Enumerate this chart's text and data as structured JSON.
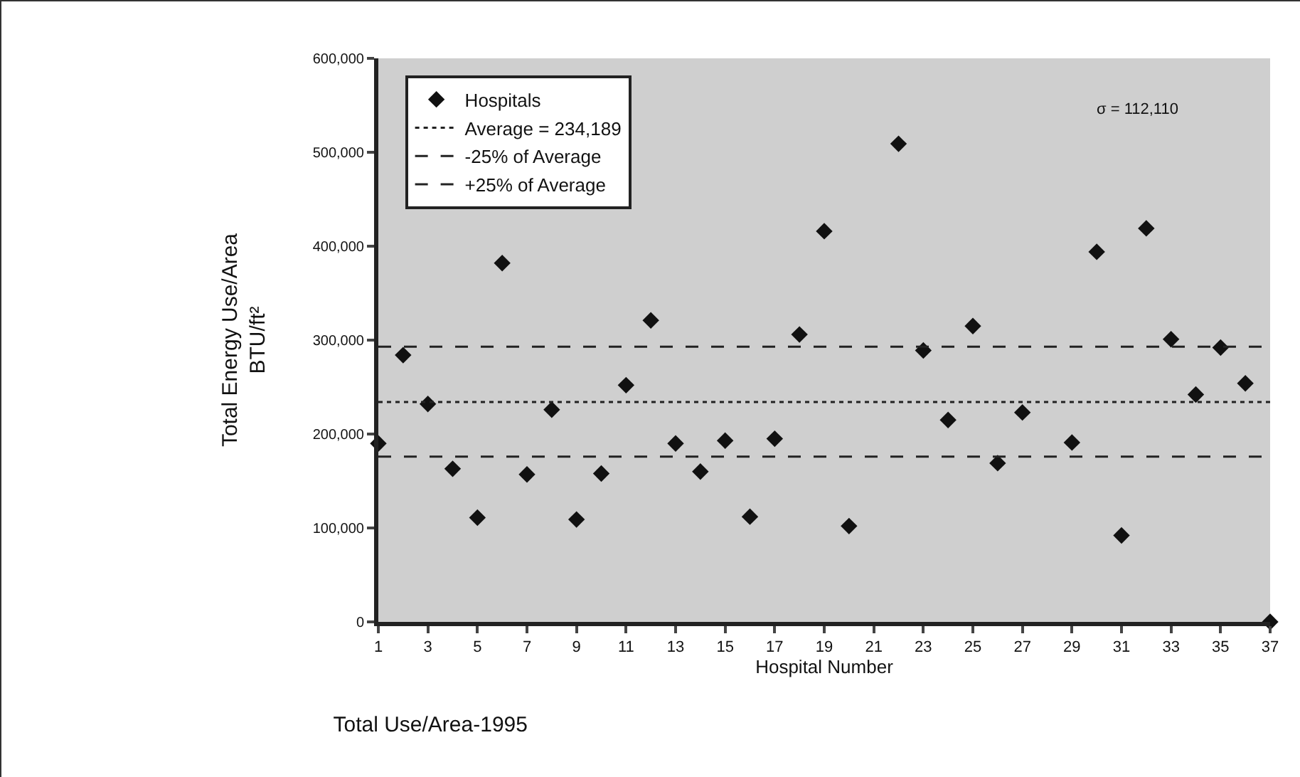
{
  "chart_data": {
    "type": "scatter",
    "title": "Total Use/Area-1995",
    "xlabel": "Hospital Number",
    "ylabel": "Total Energy Use/Area\nBTU/ft²",
    "x": [
      1,
      2,
      3,
      4,
      5,
      6,
      7,
      8,
      9,
      10,
      11,
      12,
      13,
      14,
      15,
      16,
      17,
      18,
      19,
      20,
      21,
      22,
      23,
      24,
      25,
      26,
      27,
      28,
      29,
      30,
      31,
      32,
      33,
      34,
      35,
      36,
      37
    ],
    "series": [
      {
        "name": "Hospitals",
        "color": "#111111",
        "marker": "diamond",
        "values": [
          190000,
          284000,
          232000,
          163000,
          111000,
          382000,
          157000,
          226000,
          109000,
          158000,
          252000,
          321000,
          190000,
          160000,
          193000,
          112000,
          195000,
          306000,
          416000,
          102000,
          null,
          509000,
          289000,
          215000,
          315000,
          169000,
          223000,
          null,
          191000,
          394000,
          92000,
          419000,
          301000,
          242000,
          292000,
          254000,
          0
        ]
      }
    ],
    "ref_lines": [
      {
        "axis": "y",
        "value": 234189,
        "label": "Average = 234,189",
        "color": "#222222",
        "line_style": "dotted"
      },
      {
        "axis": "y",
        "value": 176000,
        "label": "-25% of Average",
        "color": "#222222",
        "line_style": "dashed"
      },
      {
        "axis": "y",
        "value": 293000,
        "label": "+25% of Average",
        "color": "#222222",
        "line_style": "dashed"
      }
    ],
    "xlim": [
      1,
      37
    ],
    "xticks": [
      1,
      3,
      5,
      7,
      9,
      11,
      13,
      15,
      17,
      19,
      21,
      23,
      25,
      27,
      29,
      31,
      33,
      35,
      37
    ],
    "ylim": [
      0,
      600000
    ],
    "yticks": [
      {
        "value": 0,
        "label": "0"
      },
      {
        "value": 100000,
        "label": "100,000"
      },
      {
        "value": 200000,
        "label": "200,000"
      },
      {
        "value": 300000,
        "label": "300,000"
      },
      {
        "value": 400000,
        "label": "400,000"
      },
      {
        "value": 500000,
        "label": "500,000"
      },
      {
        "value": 600000,
        "label": "600,000"
      }
    ],
    "annotations": [
      "σ = 112,110"
    ],
    "grid": false,
    "legend": "top left"
  }
}
